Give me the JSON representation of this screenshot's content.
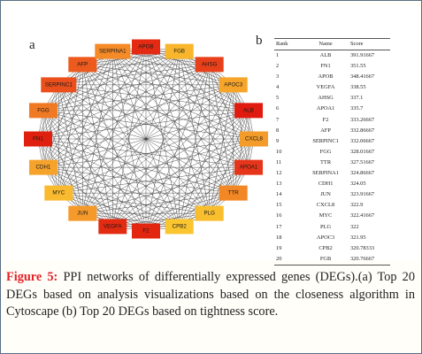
{
  "panel_a_label": "a",
  "panel_b_label": "b",
  "network": {
    "nodes": [
      {
        "name": "APOB",
        "color": "#e42a12"
      },
      {
        "name": "FGB",
        "color": "#f9b62d"
      },
      {
        "name": "AHSG",
        "color": "#e8401a"
      },
      {
        "name": "APOC3",
        "color": "#f7a52a"
      },
      {
        "name": "ALB",
        "color": "#e01a0e"
      },
      {
        "name": "CXCL8",
        "color": "#f39c29"
      },
      {
        "name": "APOA1",
        "color": "#e6351a"
      },
      {
        "name": "TTR",
        "color": "#f28825"
      },
      {
        "name": "PLG",
        "color": "#f9be2e"
      },
      {
        "name": "CPB2",
        "color": "#fbc530"
      },
      {
        "name": "F2",
        "color": "#e2260f"
      },
      {
        "name": "VEGFA",
        "color": "#e32b12"
      },
      {
        "name": "JUN",
        "color": "#f59a2a"
      },
      {
        "name": "MYC",
        "color": "#f9ba2f"
      },
      {
        "name": "CDH1",
        "color": "#f6a32b"
      },
      {
        "name": "FN1",
        "color": "#e0200e"
      },
      {
        "name": "FGG",
        "color": "#f07a24"
      },
      {
        "name": "SERPINC1",
        "color": "#ea4f1c"
      },
      {
        "name": "AFP",
        "color": "#ec5a1e"
      },
      {
        "name": "SERPINA1",
        "color": "#f58a27"
      }
    ]
  },
  "table": {
    "headers": {
      "rank": "Rank",
      "name": "Name",
      "score": "Score"
    },
    "rows": [
      {
        "rank": "1",
        "name": "ALB",
        "score": "391.91667"
      },
      {
        "rank": "2",
        "name": "FN1",
        "score": "351.55"
      },
      {
        "rank": "3",
        "name": "APOB",
        "score": "348.41667"
      },
      {
        "rank": "4",
        "name": "VEGFA",
        "score": "338.55"
      },
      {
        "rank": "5",
        "name": "AHSG",
        "score": "337.1"
      },
      {
        "rank": "6",
        "name": "APOA1",
        "score": "335.7"
      },
      {
        "rank": "7",
        "name": "F2",
        "score": "333.26667"
      },
      {
        "rank": "8",
        "name": "AFP",
        "score": "332.86667"
      },
      {
        "rank": "9",
        "name": "SERPINC1",
        "score": "332.06667"
      },
      {
        "rank": "10",
        "name": "FGG",
        "score": "328.01667"
      },
      {
        "rank": "11",
        "name": "TTR",
        "score": "327.51667"
      },
      {
        "rank": "12",
        "name": "SERPINA1",
        "score": "324.86667"
      },
      {
        "rank": "13",
        "name": "CDH1",
        "score": "324.05"
      },
      {
        "rank": "14",
        "name": "JUN",
        "score": "323.91667"
      },
      {
        "rank": "15",
        "name": "CXCL8",
        "score": "322.9"
      },
      {
        "rank": "16",
        "name": "MYC",
        "score": "322.41667"
      },
      {
        "rank": "17",
        "name": "PLG",
        "score": "322"
      },
      {
        "rank": "18",
        "name": "APOC3",
        "score": "321.95"
      },
      {
        "rank": "19",
        "name": "CPB2",
        "score": "320.78333"
      },
      {
        "rank": "20",
        "name": "FGB",
        "score": "320.76667"
      }
    ]
  },
  "caption": {
    "label": "Figure 5:",
    "text": " PPI networks of differentially expressed genes (DEGs).(a) Top 20 DEGs based on analysis visualizations based on the closeness algorithm in Cytoscape (b) Top 20 DEGs based on tightness score."
  }
}
